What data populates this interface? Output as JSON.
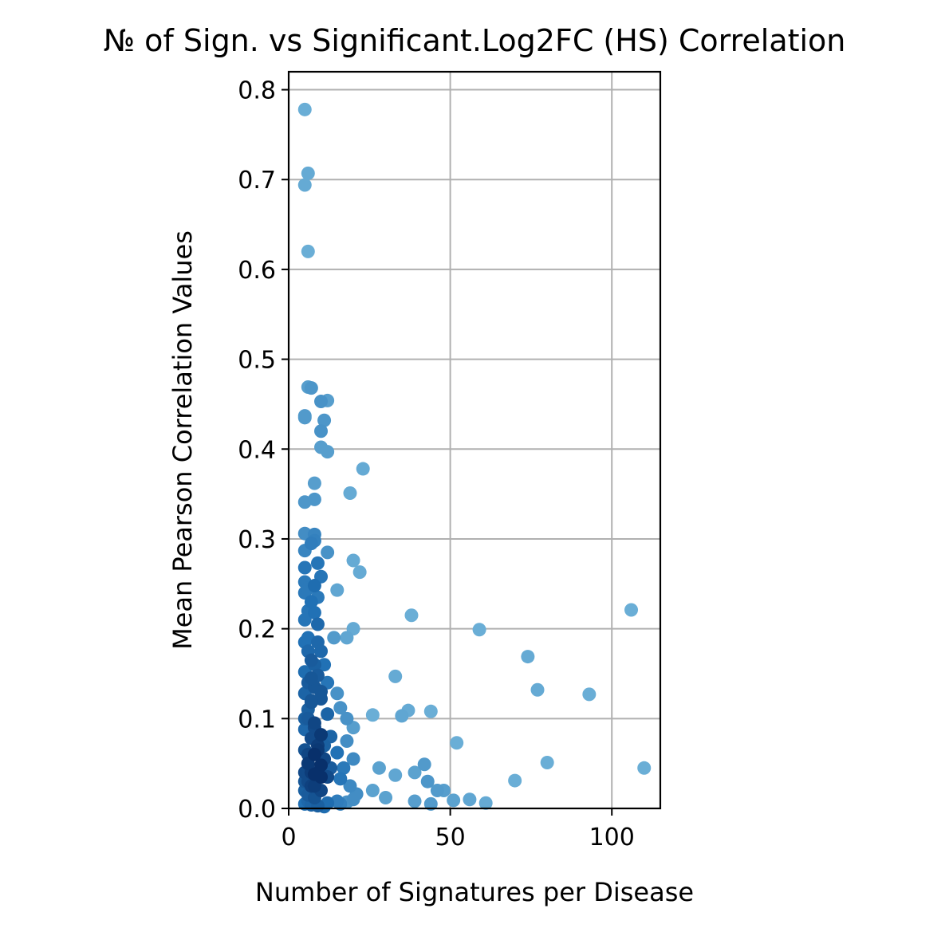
{
  "chart_data": {
    "type": "scatter",
    "title": "№ of Sign. vs Significant.Log2FC (HS) Correlation",
    "xlabel": "Number of Signatures per Disease",
    "ylabel": "Mean Pearson Correlation Values",
    "xlim": [
      0,
      115
    ],
    "ylim": [
      0,
      0.82
    ],
    "xticks": [
      0,
      50,
      100
    ],
    "yticks": [
      0.0,
      0.1,
      0.2,
      0.3,
      0.4,
      0.5,
      0.6,
      0.7,
      0.8
    ],
    "xtick_labels": [
      "0",
      "50",
      "100"
    ],
    "ytick_labels": [
      "0.0",
      "0.1",
      "0.2",
      "0.3",
      "0.4",
      "0.5",
      "0.6",
      "0.7",
      "0.8"
    ],
    "grid": true,
    "colormap": "blues (denser regions darker)",
    "color_light": "#6aaed6",
    "color_mid": "#2171b5",
    "color_dark": "#08306b",
    "points": [
      [
        5,
        0.778
      ],
      [
        6,
        0.707
      ],
      [
        5,
        0.694
      ],
      [
        6,
        0.62
      ],
      [
        6,
        0.469
      ],
      [
        7,
        0.468
      ],
      [
        5,
        0.437
      ],
      [
        5,
        0.435
      ],
      [
        10,
        0.453
      ],
      [
        12,
        0.454
      ],
      [
        11,
        0.432
      ],
      [
        10,
        0.42
      ],
      [
        10,
        0.402
      ],
      [
        12,
        0.397
      ],
      [
        23,
        0.378
      ],
      [
        19,
        0.351
      ],
      [
        8,
        0.362
      ],
      [
        8,
        0.344
      ],
      [
        5,
        0.341
      ],
      [
        5,
        0.306
      ],
      [
        8,
        0.305
      ],
      [
        8,
        0.298
      ],
      [
        7,
        0.295
      ],
      [
        5,
        0.287
      ],
      [
        12,
        0.285
      ],
      [
        20,
        0.276
      ],
      [
        9,
        0.273
      ],
      [
        5,
        0.268
      ],
      [
        22,
        0.263
      ],
      [
        10,
        0.258
      ],
      [
        5,
        0.252
      ],
      [
        8,
        0.248
      ],
      [
        5,
        0.24
      ],
      [
        9,
        0.235
      ],
      [
        15,
        0.243
      ],
      [
        6,
        0.22
      ],
      [
        8,
        0.218
      ],
      [
        38,
        0.215
      ],
      [
        106,
        0.221
      ],
      [
        59,
        0.199
      ],
      [
        20,
        0.2
      ],
      [
        14,
        0.19
      ],
      [
        18,
        0.19
      ],
      [
        5,
        0.185
      ],
      [
        9,
        0.185
      ],
      [
        6,
        0.175
      ],
      [
        10,
        0.175
      ],
      [
        74,
        0.169
      ],
      [
        7,
        0.165
      ],
      [
        11,
        0.16
      ],
      [
        5,
        0.152
      ],
      [
        9,
        0.148
      ],
      [
        33,
        0.147
      ],
      [
        6,
        0.14
      ],
      [
        12,
        0.14
      ],
      [
        8,
        0.135
      ],
      [
        77,
        0.132
      ],
      [
        5,
        0.128
      ],
      [
        15,
        0.128
      ],
      [
        93,
        0.127
      ],
      [
        10,
        0.122
      ],
      [
        7,
        0.118
      ],
      [
        16,
        0.112
      ],
      [
        37,
        0.109
      ],
      [
        44,
        0.108
      ],
      [
        35,
        0.103
      ],
      [
        26,
        0.104
      ],
      [
        12,
        0.105
      ],
      [
        6,
        0.1
      ],
      [
        18,
        0.1
      ],
      [
        8,
        0.095
      ],
      [
        20,
        0.09
      ],
      [
        5,
        0.088
      ],
      [
        10,
        0.082
      ],
      [
        13,
        0.08
      ],
      [
        7,
        0.078
      ],
      [
        18,
        0.075
      ],
      [
        52,
        0.073
      ],
      [
        11,
        0.07
      ],
      [
        5,
        0.065
      ],
      [
        9,
        0.065
      ],
      [
        15,
        0.062
      ],
      [
        20,
        0.055
      ],
      [
        8,
        0.06
      ],
      [
        80,
        0.051
      ],
      [
        42,
        0.049
      ],
      [
        110,
        0.045
      ],
      [
        28,
        0.045
      ],
      [
        6,
        0.05
      ],
      [
        10,
        0.048
      ],
      [
        13,
        0.045
      ],
      [
        17,
        0.045
      ],
      [
        39,
        0.04
      ],
      [
        33,
        0.037
      ],
      [
        5,
        0.04
      ],
      [
        8,
        0.038
      ],
      [
        12,
        0.035
      ],
      [
        16,
        0.033
      ],
      [
        43,
        0.03
      ],
      [
        70,
        0.031
      ],
      [
        5,
        0.03
      ],
      [
        7,
        0.025
      ],
      [
        19,
        0.025
      ],
      [
        26,
        0.02
      ],
      [
        46,
        0.02
      ],
      [
        48,
        0.02
      ],
      [
        10,
        0.02
      ],
      [
        6,
        0.015
      ],
      [
        21,
        0.016
      ],
      [
        30,
        0.012
      ],
      [
        39,
        0.008
      ],
      [
        44,
        0.005
      ],
      [
        51,
        0.009
      ],
      [
        56,
        0.01
      ],
      [
        61,
        0.006
      ],
      [
        15,
        0.008
      ],
      [
        18,
        0.007
      ],
      [
        20,
        0.01
      ],
      [
        5,
        0.005
      ],
      [
        7,
        0.004
      ],
      [
        9,
        0.003
      ],
      [
        11,
        0.002
      ],
      [
        6,
        0.008
      ],
      [
        8,
        0.012
      ],
      [
        12,
        0.006
      ],
      [
        16,
        0.005
      ],
      [
        5,
        0.1
      ],
      [
        6,
        0.11
      ],
      [
        7,
        0.12
      ],
      [
        8,
        0.09
      ],
      [
        9,
        0.07
      ],
      [
        6,
        0.06
      ],
      [
        7,
        0.04
      ],
      [
        5,
        0.02
      ],
      [
        6,
        0.03
      ],
      [
        8,
        0.025
      ],
      [
        10,
        0.035
      ],
      [
        11,
        0.055
      ],
      [
        7,
        0.145
      ],
      [
        6,
        0.19
      ],
      [
        9,
        0.205
      ],
      [
        7,
        0.23
      ],
      [
        6,
        0.245
      ],
      [
        5,
        0.21
      ],
      [
        8,
        0.16
      ],
      [
        10,
        0.13
      ]
    ]
  }
}
